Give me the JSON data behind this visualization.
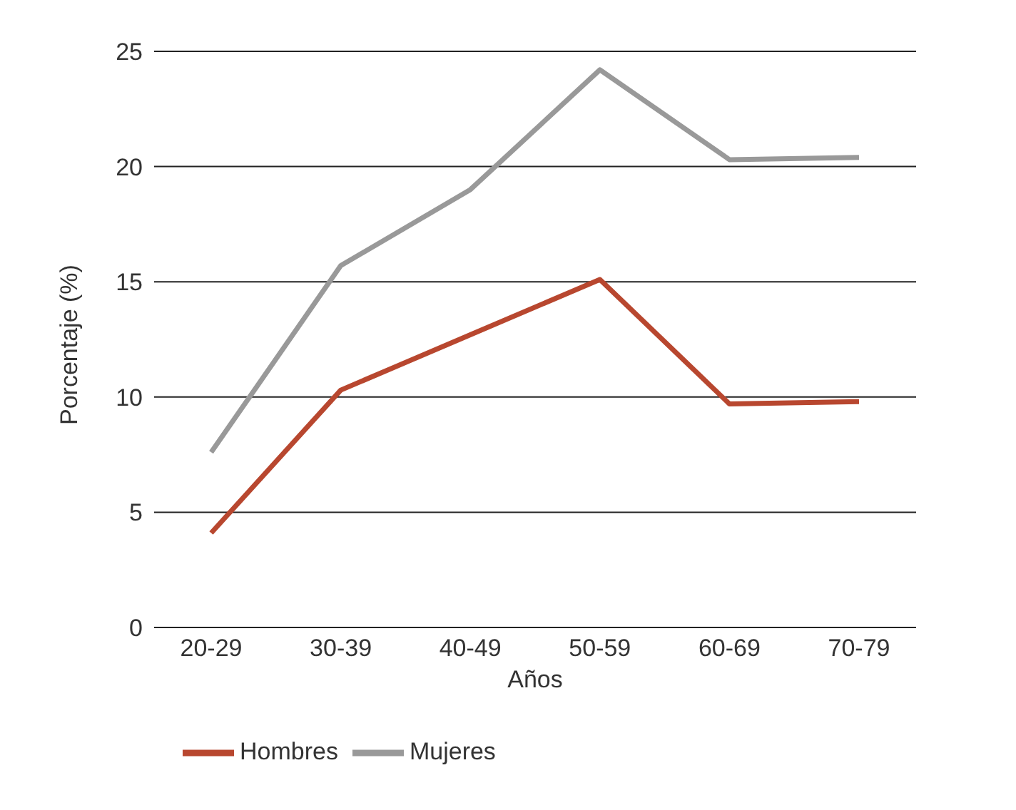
{
  "chart_data": {
    "type": "line",
    "xlabel": "Años",
    "ylabel": "Porcentaje (%)",
    "categories": [
      "20-29",
      "30-39",
      "40-49",
      "50-59",
      "60-69",
      "70-79"
    ],
    "series": [
      {
        "name": "Hombres",
        "color": "#b8472f",
        "values": [
          4.1,
          10.3,
          12.7,
          15.1,
          9.7,
          9.8
        ]
      },
      {
        "name": "Mujeres",
        "color": "#999999",
        "values": [
          7.6,
          15.7,
          19.0,
          24.2,
          20.3,
          20.4
        ]
      }
    ],
    "ylim": [
      0,
      25
    ],
    "yticks": [
      0,
      5,
      10,
      15,
      20,
      25
    ],
    "grid": "y",
    "legend": "bottom",
    "marker": "none",
    "line_style": "solid"
  }
}
